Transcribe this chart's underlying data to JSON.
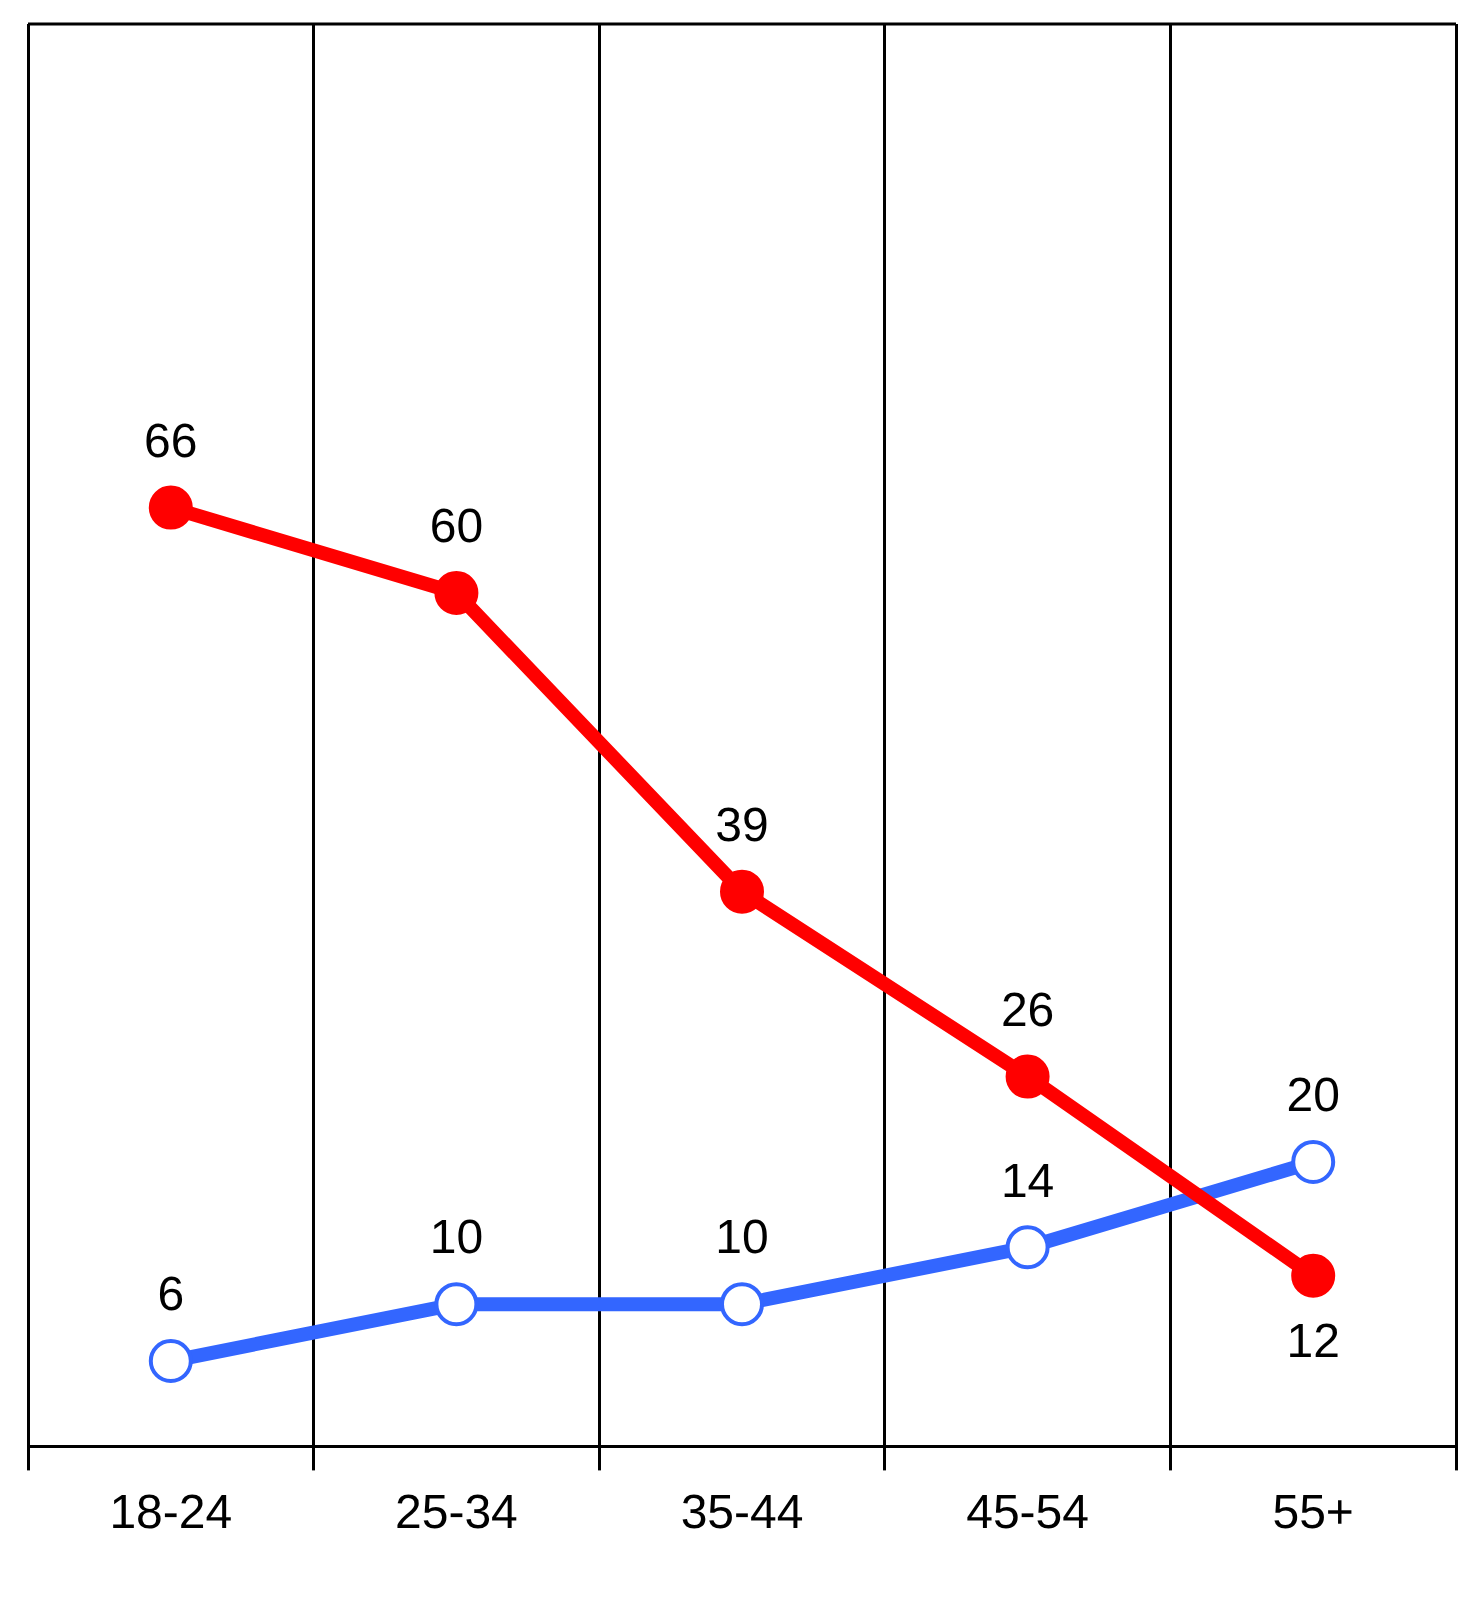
{
  "chart_data": {
    "type": "line",
    "categories": [
      "18-24",
      "25-34",
      "35-44",
      "45-54",
      "55+"
    ],
    "series": [
      {
        "color": "#ff0000",
        "values": [
          66,
          60,
          39,
          26,
          12
        ]
      },
      {
        "color": "#3366ff",
        "values": [
          6,
          10,
          10,
          14,
          20
        ]
      }
    ],
    "ylim": [
      0,
      100
    ],
    "grid": "x",
    "legend": false,
    "tick_labels": "x",
    "data_labels": true,
    "marker": "circle",
    "line_style": "solid"
  }
}
